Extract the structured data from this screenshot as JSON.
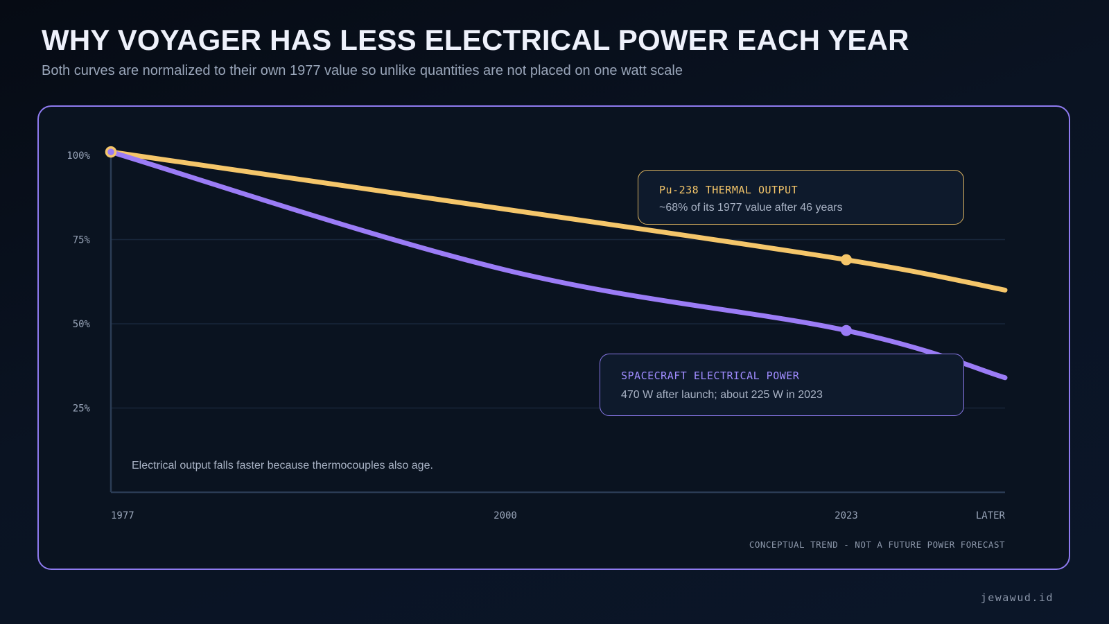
{
  "header": {
    "title": "WHY VOYAGER HAS LESS ELECTRICAL POWER EACH YEAR",
    "subtitle": "Both curves are normalized to their own 1977 value so unlike quantities are not placed on one watt scale"
  },
  "chart_data": {
    "type": "line",
    "x_categories": [
      "1977",
      "2000",
      "2023",
      "LATER"
    ],
    "x_tick_labels": [
      "1977",
      "2000",
      "2023",
      "LATER"
    ],
    "y_tick_labels": [
      "100%",
      "75%",
      "50%",
      "25%"
    ],
    "y_ticks": [
      100,
      75,
      50,
      25
    ],
    "ylim": [
      0,
      100
    ],
    "grid": true,
    "series": [
      {
        "name": "Pu-238 THERMAL OUTPUT",
        "color": "#f5c66a",
        "points": [
          {
            "x": "1977",
            "y": 101
          },
          {
            "x": "2000",
            "y": 84
          },
          {
            "x": "2023",
            "y": 69
          },
          {
            "x": "LATER",
            "y": 60
          }
        ],
        "marker_at": "2023"
      },
      {
        "name": "SPACECRAFT ELECTRICAL POWER",
        "color": "#9b7cf6",
        "points": [
          {
            "x": "1977",
            "y": 101
          },
          {
            "x": "2000",
            "y": 66
          },
          {
            "x": "2023",
            "y": 48
          },
          {
            "x": "LATER",
            "y": 34
          }
        ],
        "marker_at": "2023"
      }
    ],
    "annotations": {
      "thermal": {
        "title": "Pu-238 THERMAL OUTPUT",
        "text": "~68% of its 1977 value after 46 years"
      },
      "power": {
        "title": "SPACECRAFT ELECTRICAL POWER",
        "text": "470 W after launch; about 225 W in 2023"
      },
      "note": "Electrical output falls faster because thermocouples also age.",
      "disclaimer": "CONCEPTUAL TREND - NOT A FUTURE POWER FORECAST"
    },
    "colors": {
      "thermal": "#f5c66a",
      "power": "#9b7cf6",
      "panel_border": "#8f7bf0",
      "grid": "#18263a",
      "axis": "#2b3c55"
    }
  },
  "footer": {
    "brand": "jewawud.id"
  }
}
